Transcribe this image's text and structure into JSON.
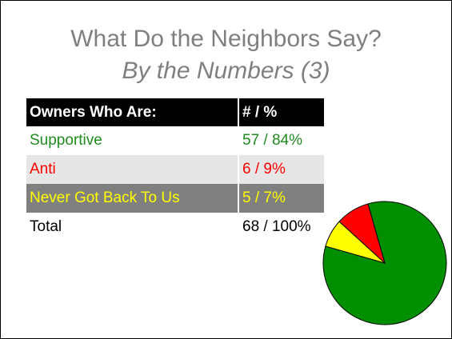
{
  "title": "What Do the Neighbors Say?",
  "subtitle": "By the Numbers (3)",
  "table": {
    "headers": [
      "Owners Who Are:",
      "# / %"
    ],
    "rows": [
      {
        "label": "Supportive",
        "value": "57 / 84%"
      },
      {
        "label": "Anti",
        "value": "6 / 9%"
      },
      {
        "label": "Never Got Back To Us",
        "value": "5 / 7%"
      },
      {
        "label": "Total",
        "value": "68 / 100%"
      }
    ]
  },
  "chart_data": {
    "type": "pie",
    "categories": [
      "Supportive",
      "Anti",
      "Never Got Back To Us"
    ],
    "values": [
      57,
      6,
      5
    ],
    "colors": [
      "#008f00",
      "#ff0000",
      "#ffff00"
    ],
    "edge_color": "#000000"
  }
}
